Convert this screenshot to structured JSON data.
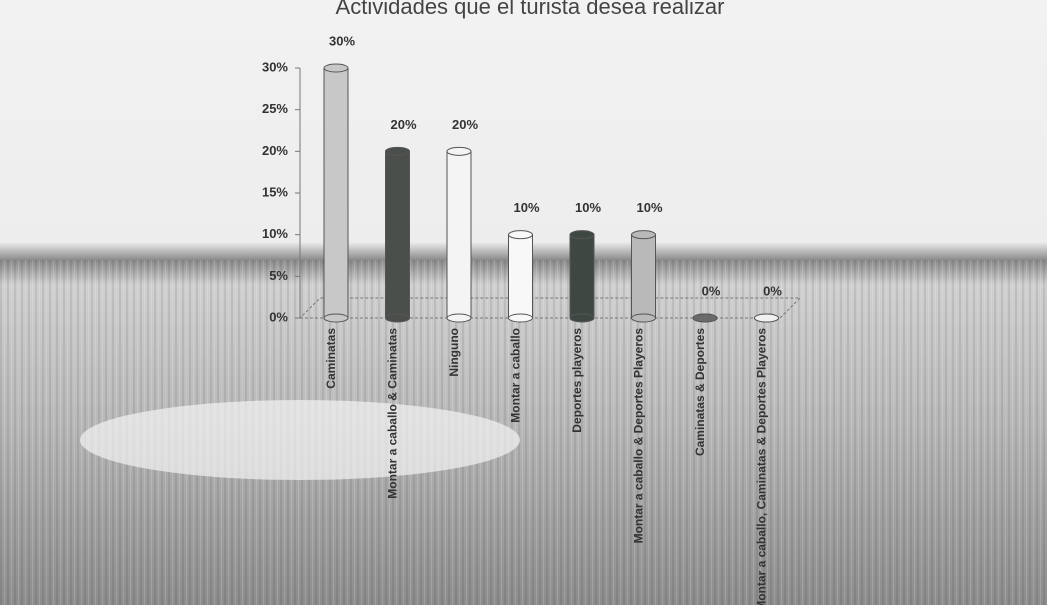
{
  "chart_data": {
    "type": "bar",
    "title": "Actividades que el turista desea realizar",
    "categories": [
      "Caminatas",
      "Montar a caballo & Caminatas",
      "Ninguno",
      "Montar a caballo",
      "Deportes playeros",
      "Montar a caballo & Deportes Playeros",
      "Caminatas & Deportes",
      "Montar a caballo, Caminatas & Deportes Playeros"
    ],
    "values": [
      30,
      20,
      20,
      10,
      10,
      10,
      0,
      0
    ],
    "value_labels": [
      "30%",
      "20%",
      "20%",
      "10%",
      "10%",
      "10%",
      "0%",
      "0%"
    ],
    "colors": [
      "#c8c8c8",
      "#4a4f4c",
      "#f4f4f4",
      "#f8f8f8",
      "#3f4743",
      "#b9b9b9",
      "#6a6a6a",
      "#f0f0f0"
    ],
    "ylim": [
      0,
      30
    ],
    "yticks": [
      {
        "value": 0,
        "label": "0%"
      },
      {
        "value": 5,
        "label": "5%"
      },
      {
        "value": 10,
        "label": "10%"
      },
      {
        "value": 15,
        "label": "15%"
      },
      {
        "value": 20,
        "label": "20%"
      },
      {
        "value": 25,
        "label": "25%"
      },
      {
        "value": 30,
        "label": "30%"
      }
    ]
  }
}
